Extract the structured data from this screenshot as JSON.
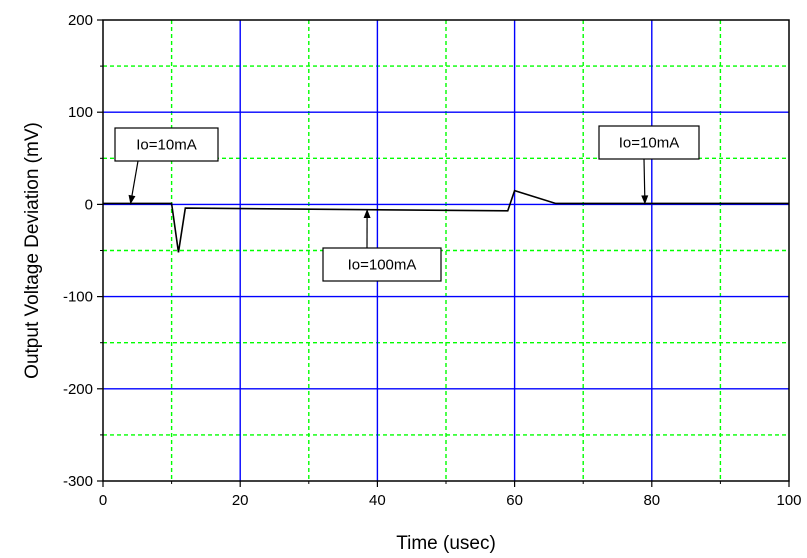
{
  "chart_data": {
    "type": "line",
    "xlabel": "Time (usec)",
    "ylabel": "Output Voltage Deviation (mV)",
    "xlim": [
      0,
      100
    ],
    "ylim": [
      -300,
      200
    ],
    "x_ticks": [
      0,
      20,
      40,
      60,
      80,
      100
    ],
    "x_tick_labels": [
      "0",
      "20",
      "40",
      "60",
      "80",
      "100"
    ],
    "y_ticks": [
      200,
      100,
      0,
      -100,
      -200,
      -300
    ],
    "y_tick_labels": [
      "200",
      "100",
      "0",
      "-100",
      "-200",
      "-300"
    ],
    "grid": {
      "major_color": "#0000ff",
      "minor_color": "#00ff00",
      "x_major": [
        20,
        40,
        60,
        80
      ],
      "x_minor": [
        10,
        30,
        50,
        70,
        90
      ],
      "y_major": [
        100,
        0,
        -100,
        -200
      ],
      "y_minor": [
        150,
        50,
        -50,
        -150,
        -250
      ]
    },
    "series": [
      {
        "color": "#000000",
        "x": [
          0,
          10,
          11,
          12,
          59,
          60,
          66,
          100
        ],
        "y": [
          1,
          1,
          -52,
          -4,
          -7,
          15,
          1,
          1
        ]
      }
    ],
    "annotations": [
      {
        "text": "Io=10mA",
        "x": 4,
        "y": 0
      },
      {
        "text": "Io=100mA",
        "x": 38.5,
        "y": -5
      },
      {
        "text": "Io=10mA",
        "x": 79,
        "y": 0
      }
    ]
  }
}
